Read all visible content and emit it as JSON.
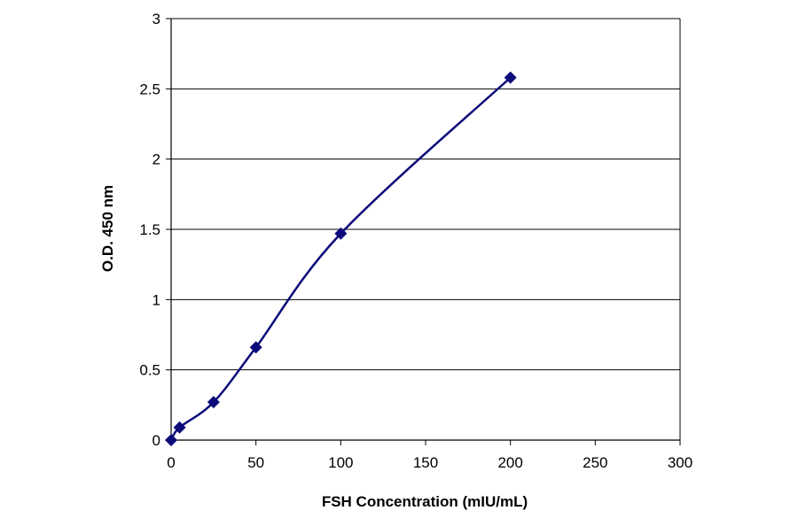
{
  "chart_data": {
    "type": "line",
    "title": "",
    "xlabel": "FSH Concentration (mIU/mL)",
    "ylabel": "O.D. 450 nm",
    "xlim": [
      0,
      300
    ],
    "ylim": [
      0,
      3
    ],
    "x_ticks": [
      0,
      50,
      100,
      150,
      200,
      250,
      300
    ],
    "y_ticks": [
      0,
      0.5,
      1,
      1.5,
      2,
      2.5,
      3
    ],
    "x_tick_labels": [
      "0",
      "50",
      "100",
      "150",
      "200",
      "250",
      "300"
    ],
    "y_tick_labels": [
      "0",
      "0.5",
      "1",
      "1.5",
      "2",
      "2.5",
      "3"
    ],
    "grid": {
      "horizontal": true,
      "vertical": false
    },
    "legend": "none",
    "marker": "diamond",
    "smooth": true,
    "series": [
      {
        "color": "#0b0b7a",
        "points": [
          {
            "x": 0,
            "y": 0.0
          },
          {
            "x": 5,
            "y": 0.09
          },
          {
            "x": 25,
            "y": 0.27
          },
          {
            "x": 50,
            "y": 0.66
          },
          {
            "x": 100,
            "y": 1.47
          },
          {
            "x": 200,
            "y": 2.58
          }
        ]
      }
    ]
  }
}
